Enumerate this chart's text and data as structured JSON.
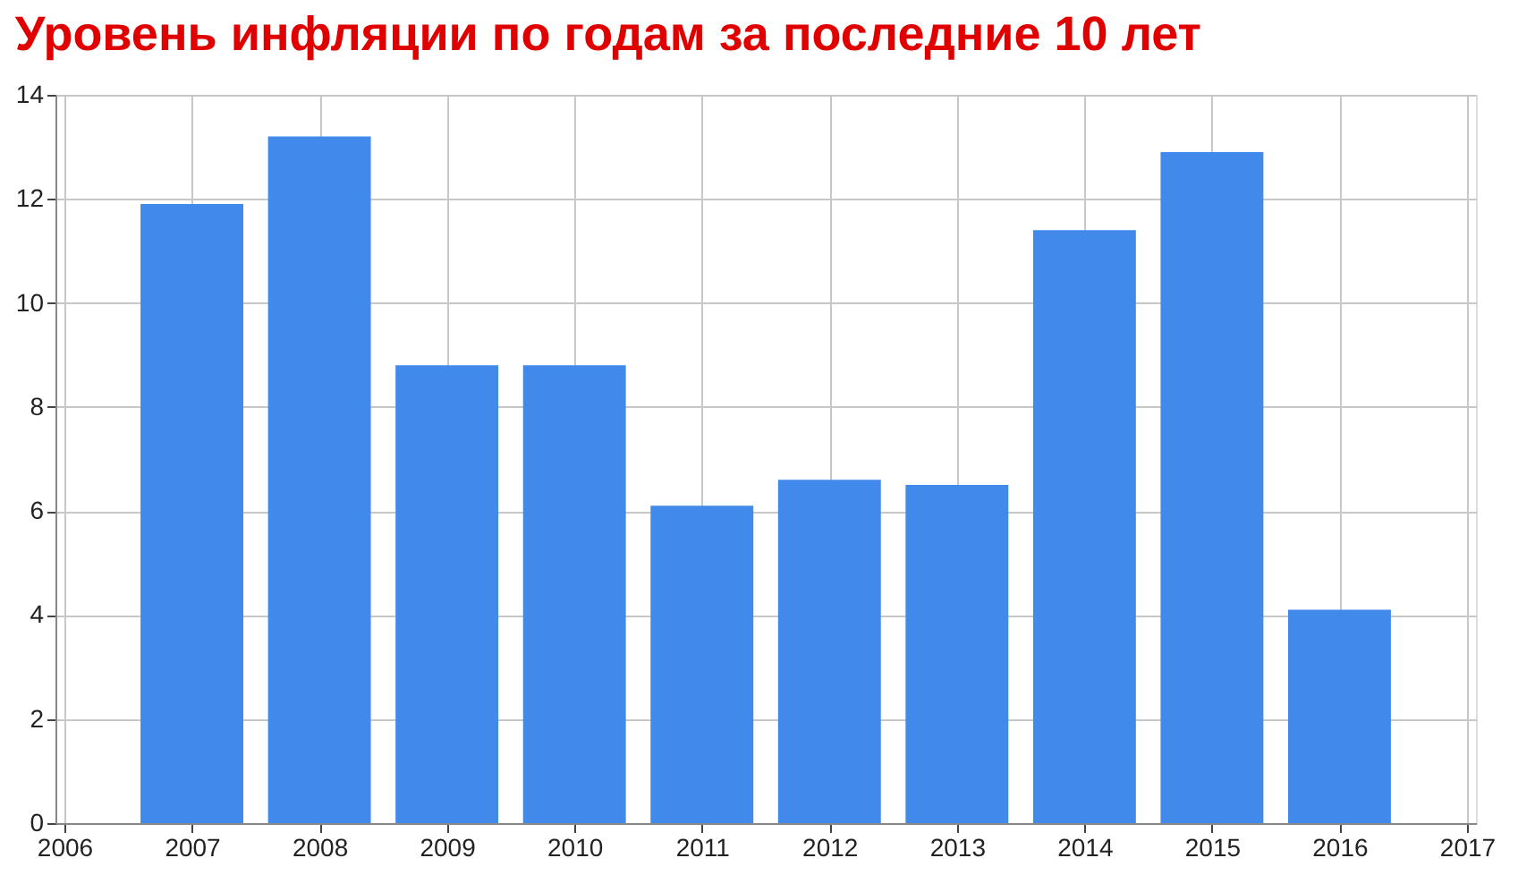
{
  "chart_data": {
    "type": "bar",
    "title": "Уровень инфляции по годам за последние 10 лет",
    "x": [
      2007,
      2008,
      2009,
      2010,
      2011,
      2012,
      2013,
      2014,
      2015,
      2016
    ],
    "values": [
      11.9,
      13.2,
      8.8,
      8.8,
      6.1,
      6.6,
      6.5,
      11.4,
      12.9,
      4.1
    ],
    "color": "#418aec",
    "xlim": [
      2006,
      2017
    ],
    "xticks": [
      2006,
      2007,
      2008,
      2009,
      2010,
      2011,
      2012,
      2013,
      2014,
      2015,
      2016,
      2017
    ],
    "ylim": [
      0,
      14
    ],
    "yticks": [
      0,
      2,
      4,
      6,
      8,
      10,
      12,
      14
    ],
    "grid": true
  }
}
